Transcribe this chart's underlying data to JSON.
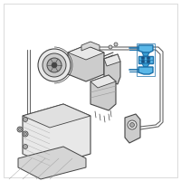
{
  "bg_color": "#ffffff",
  "border_color": "#cccccc",
  "highlight_color": "#5bb8e8",
  "highlight_dark": "#1a6fa8",
  "highlight_mid": "#3a9fd4",
  "line_color": "#666666",
  "line_dark": "#444444",
  "part_gray": "#cccccc",
  "part_light": "#e8e8e8",
  "part_mid": "#aaaaaa",
  "figsize": [
    2.0,
    2.0
  ],
  "dpi": 100
}
